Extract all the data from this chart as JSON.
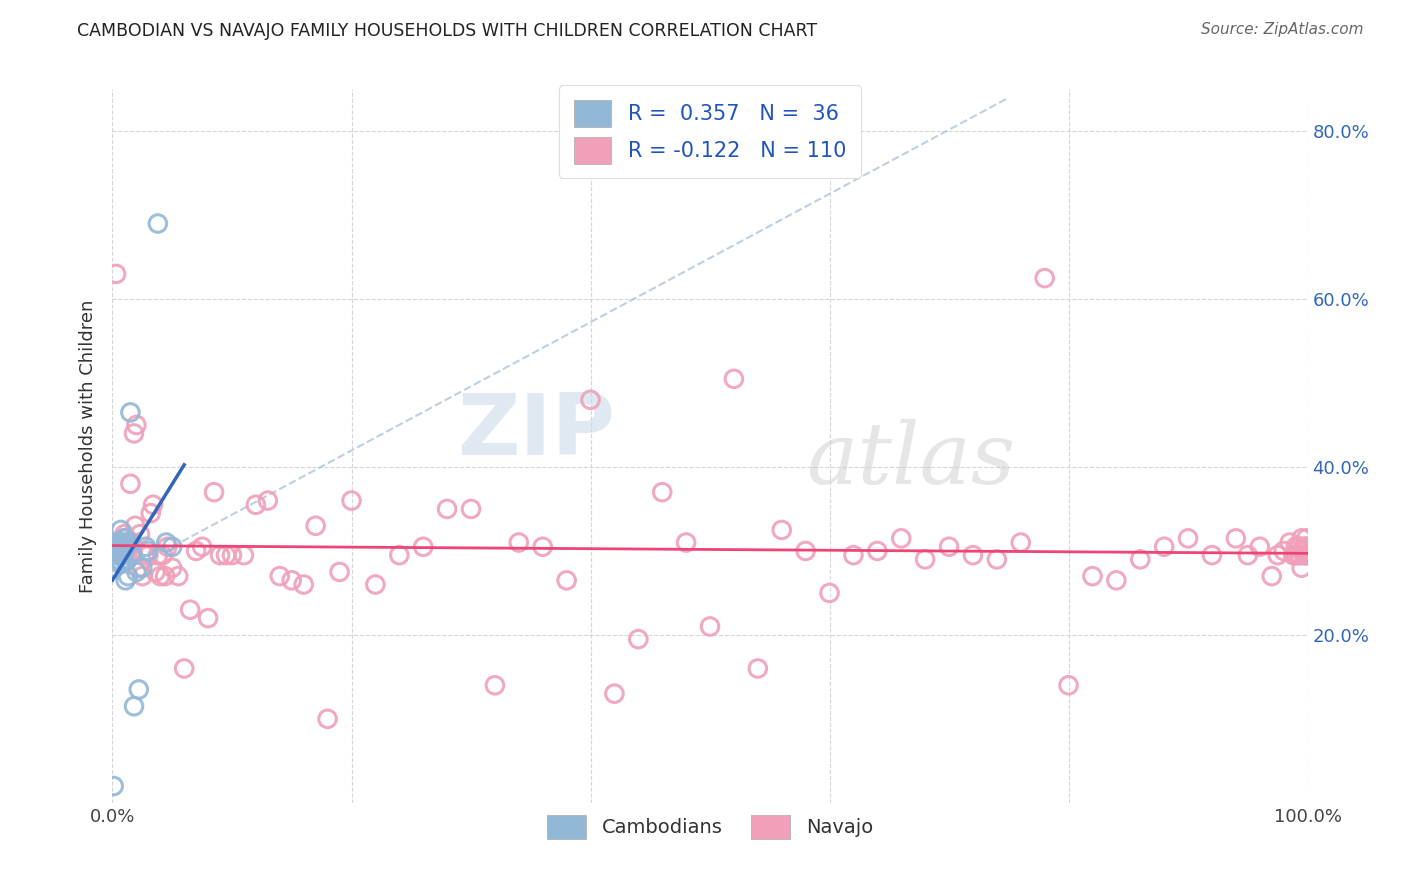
{
  "title": "CAMBODIAN VS NAVAJO FAMILY HOUSEHOLDS WITH CHILDREN CORRELATION CHART",
  "source": "Source: ZipAtlas.com",
  "ylabel": "Family Households with Children",
  "xlim": [
    0.0,
    1.0
  ],
  "ylim": [
    0.0,
    0.85
  ],
  "watermark_zip": "ZIP",
  "watermark_atlas": "atlas",
  "cambodian_color": "#92b8d8",
  "navajo_color": "#f0a0b8",
  "cambodian_line_color": "#3366bb",
  "navajo_line_color": "#ee4477",
  "r_cambodian": 0.357,
  "n_cambodian": 36,
  "r_navajo": -0.122,
  "n_navajo": 110,
  "legend_text_color": "#2255bb",
  "background_color": "#ffffff",
  "grid_color": "#cccccc",
  "camb_x": [
    0.001,
    0.002,
    0.003,
    0.003,
    0.004,
    0.004,
    0.005,
    0.005,
    0.005,
    0.006,
    0.006,
    0.007,
    0.007,
    0.008,
    0.008,
    0.008,
    0.009,
    0.009,
    0.01,
    0.01,
    0.011,
    0.011,
    0.012,
    0.013,
    0.014,
    0.015,
    0.016,
    0.018,
    0.02,
    0.022,
    0.025,
    0.028,
    0.03,
    0.038,
    0.045,
    0.05
  ],
  "camb_y": [
    0.02,
    0.28,
    0.3,
    0.29,
    0.305,
    0.31,
    0.3,
    0.295,
    0.31,
    0.305,
    0.285,
    0.31,
    0.325,
    0.285,
    0.3,
    0.31,
    0.295,
    0.3,
    0.29,
    0.315,
    0.265,
    0.305,
    0.31,
    0.27,
    0.31,
    0.465,
    0.295,
    0.115,
    0.275,
    0.135,
    0.28,
    0.305,
    0.3,
    0.69,
    0.31,
    0.305
  ],
  "nav_x": [
    0.003,
    0.005,
    0.007,
    0.008,
    0.009,
    0.01,
    0.011,
    0.012,
    0.013,
    0.014,
    0.015,
    0.016,
    0.017,
    0.018,
    0.019,
    0.02,
    0.022,
    0.023,
    0.025,
    0.027,
    0.03,
    0.032,
    0.034,
    0.036,
    0.038,
    0.04,
    0.042,
    0.044,
    0.046,
    0.05,
    0.055,
    0.06,
    0.065,
    0.07,
    0.075,
    0.08,
    0.085,
    0.09,
    0.095,
    0.1,
    0.11,
    0.12,
    0.13,
    0.14,
    0.15,
    0.16,
    0.17,
    0.18,
    0.19,
    0.2,
    0.22,
    0.24,
    0.26,
    0.28,
    0.3,
    0.32,
    0.34,
    0.36,
    0.38,
    0.4,
    0.42,
    0.44,
    0.46,
    0.48,
    0.5,
    0.52,
    0.54,
    0.56,
    0.58,
    0.6,
    0.62,
    0.64,
    0.66,
    0.68,
    0.7,
    0.72,
    0.74,
    0.76,
    0.78,
    0.8,
    0.82,
    0.84,
    0.86,
    0.88,
    0.9,
    0.92,
    0.94,
    0.95,
    0.96,
    0.97,
    0.975,
    0.98,
    0.985,
    0.99,
    0.993,
    0.995,
    0.997,
    0.998,
    0.999,
    1.0,
    0.999,
    0.998,
    0.997,
    0.996,
    0.995,
    0.994,
    0.993,
    0.992,
    0.99,
    0.988
  ],
  "nav_y": [
    0.63,
    0.295,
    0.305,
    0.3,
    0.315,
    0.32,
    0.315,
    0.305,
    0.29,
    0.305,
    0.38,
    0.31,
    0.3,
    0.44,
    0.33,
    0.45,
    0.28,
    0.32,
    0.27,
    0.295,
    0.295,
    0.345,
    0.355,
    0.275,
    0.295,
    0.27,
    0.295,
    0.27,
    0.305,
    0.28,
    0.27,
    0.16,
    0.23,
    0.3,
    0.305,
    0.22,
    0.37,
    0.295,
    0.295,
    0.295,
    0.295,
    0.355,
    0.36,
    0.27,
    0.265,
    0.26,
    0.33,
    0.1,
    0.275,
    0.36,
    0.26,
    0.295,
    0.305,
    0.35,
    0.35,
    0.14,
    0.31,
    0.305,
    0.265,
    0.48,
    0.13,
    0.195,
    0.37,
    0.31,
    0.21,
    0.505,
    0.16,
    0.325,
    0.3,
    0.25,
    0.295,
    0.3,
    0.315,
    0.29,
    0.305,
    0.295,
    0.29,
    0.31,
    0.625,
    0.14,
    0.27,
    0.265,
    0.29,
    0.305,
    0.315,
    0.295,
    0.315,
    0.295,
    0.305,
    0.27,
    0.295,
    0.3,
    0.31,
    0.295,
    0.305,
    0.28,
    0.295,
    0.305,
    0.295,
    0.305,
    0.315,
    0.295,
    0.305,
    0.3,
    0.315,
    0.295,
    0.305,
    0.295,
    0.305,
    0.295
  ]
}
